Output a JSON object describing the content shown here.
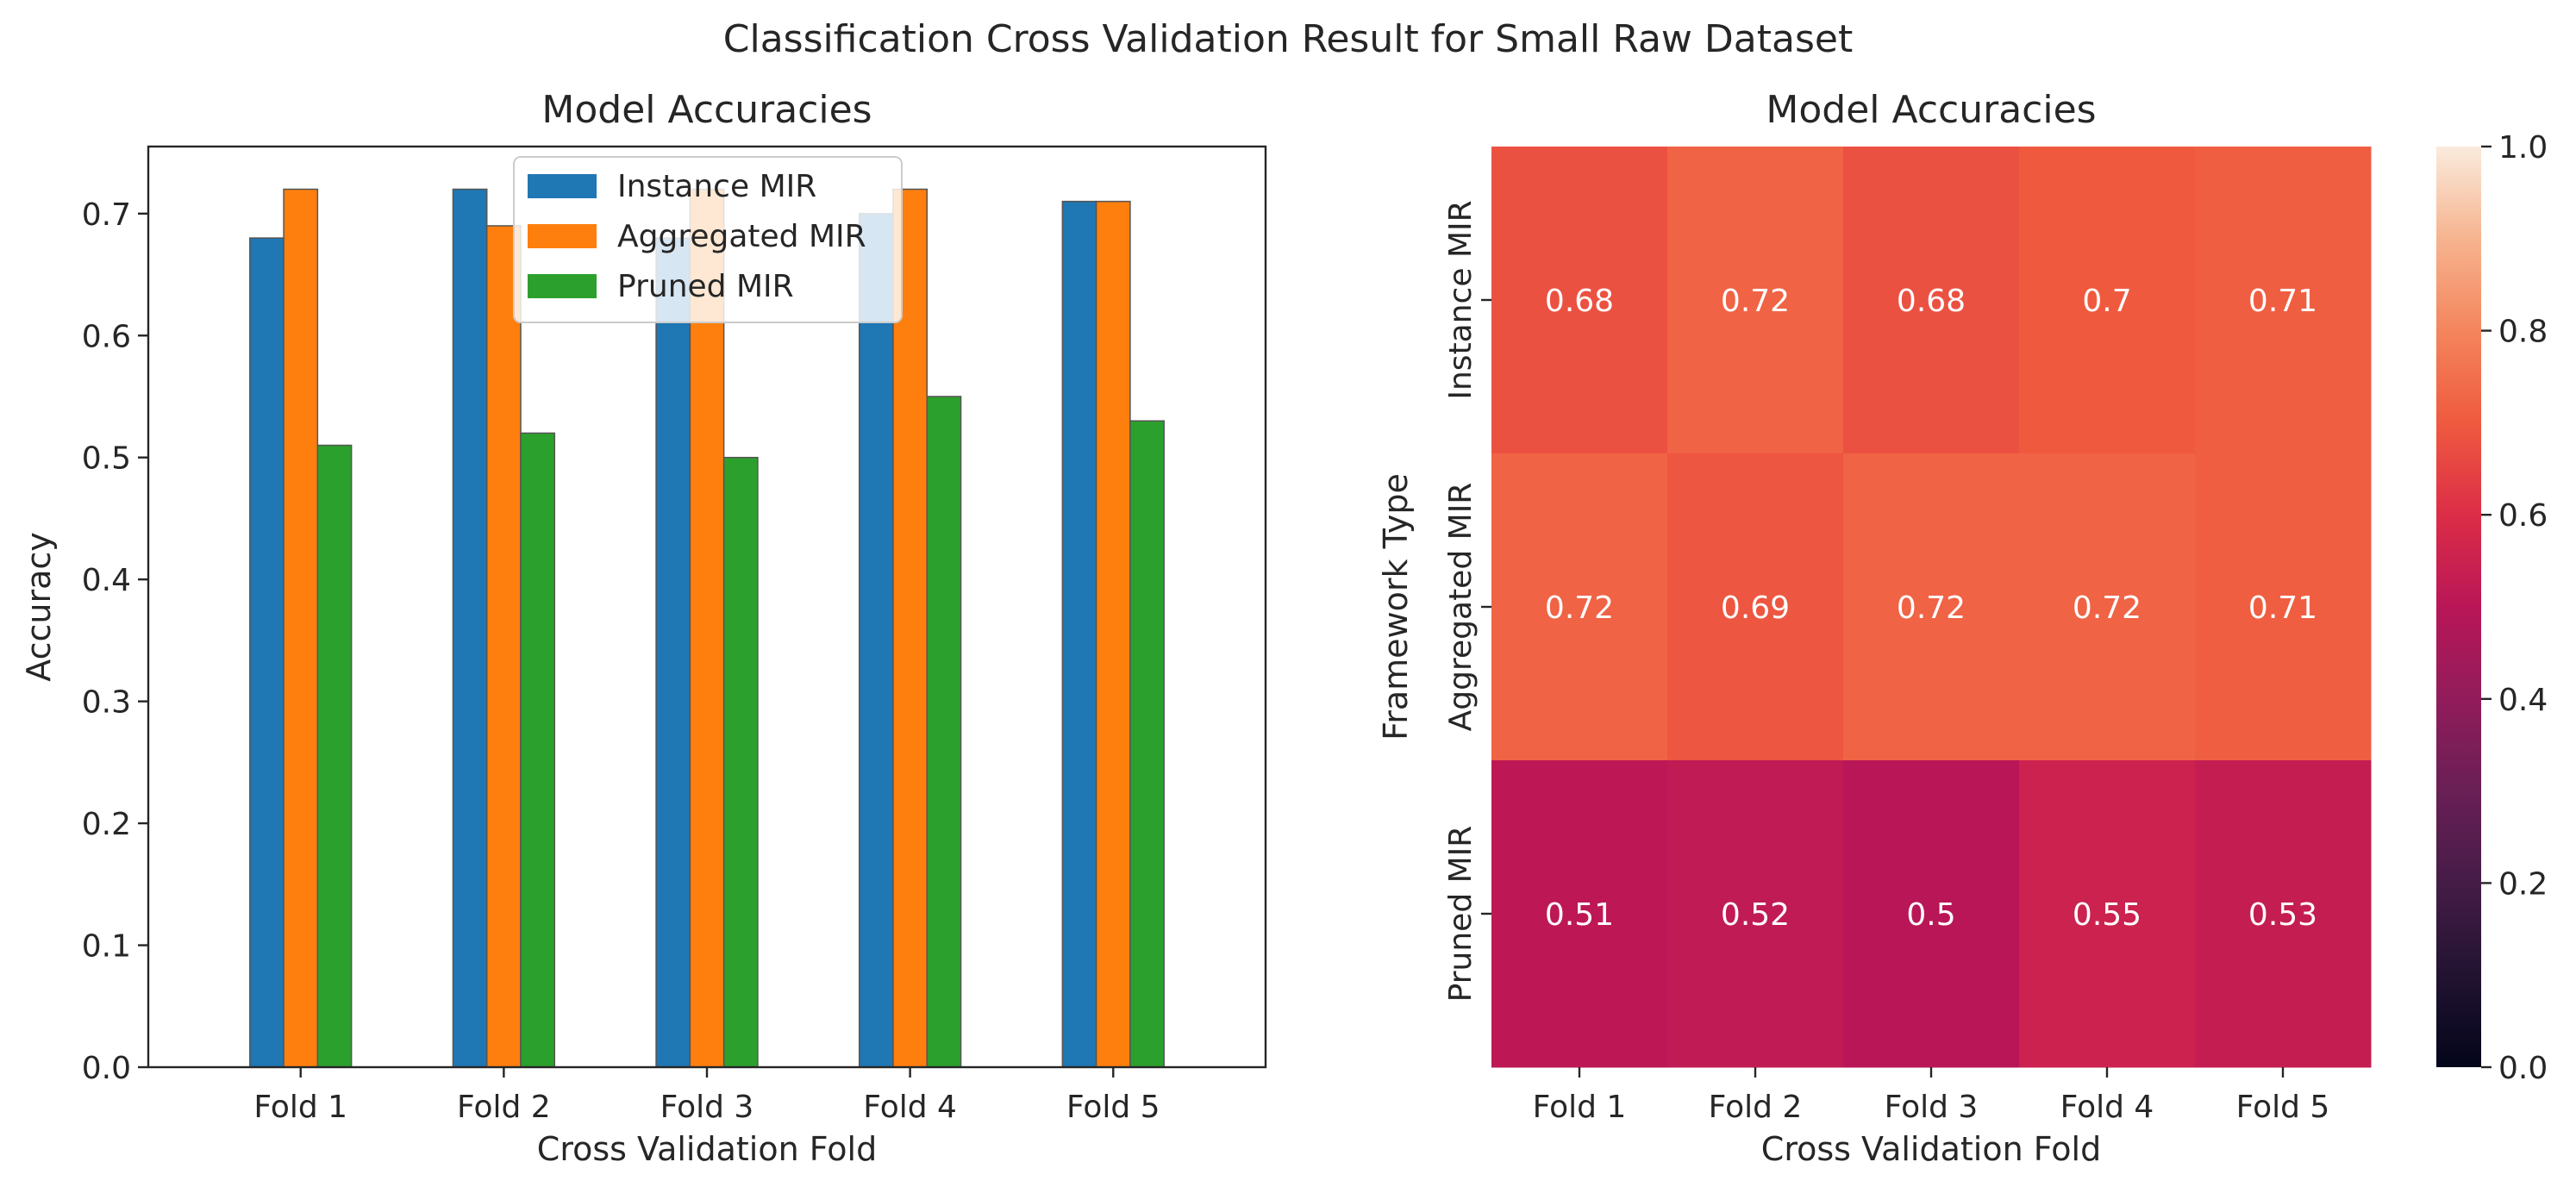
{
  "suptitle": "Classification Cross Validation Result for Small Raw Dataset",
  "colors": {
    "instance": "#1f77b4",
    "aggregated": "#ff7f0e",
    "pruned": "#2ca02c"
  },
  "chart_data": [
    {
      "type": "bar",
      "title": "Model Accuracies",
      "xlabel": "Cross Validation Fold",
      "ylabel": "Accuracy",
      "categories": [
        "Fold 1",
        "Fold 2",
        "Fold 3",
        "Fold 4",
        "Fold 5"
      ],
      "series": [
        {
          "name": "Instance MIR",
          "values": [
            0.68,
            0.72,
            0.68,
            0.7,
            0.71
          ]
        },
        {
          "name": "Aggregated MIR",
          "values": [
            0.72,
            0.69,
            0.72,
            0.72,
            0.71
          ]
        },
        {
          "name": "Pruned MIR",
          "values": [
            0.51,
            0.52,
            0.5,
            0.55,
            0.53
          ]
        }
      ],
      "ylim": [
        0,
        0.755
      ],
      "yticks": [
        "0.0",
        "0.1",
        "0.2",
        "0.3",
        "0.4",
        "0.5",
        "0.6",
        "0.7"
      ],
      "legend": "top-center",
      "grid": false
    },
    {
      "type": "heatmap",
      "title": "Model Accuracies",
      "xlabel": "Cross Validation Fold",
      "ylabel": "Framework Type",
      "columns": [
        "Fold 1",
        "Fold 2",
        "Fold 3",
        "Fold 4",
        "Fold 5"
      ],
      "rows": [
        "Instance MIR",
        "Aggregated MIR",
        "Pruned MIR"
      ],
      "values": [
        [
          0.68,
          0.72,
          0.68,
          0.7,
          0.71
        ],
        [
          0.72,
          0.69,
          0.72,
          0.72,
          0.71
        ],
        [
          0.51,
          0.52,
          0.5,
          0.55,
          0.53
        ]
      ],
      "cell_labels": [
        [
          "0.68",
          "0.72",
          "0.68",
          "0.7",
          "0.71"
        ],
        [
          "0.72",
          "0.69",
          "0.72",
          "0.72",
          "0.71"
        ],
        [
          "0.51",
          "0.52",
          "0.5",
          "0.55",
          "0.53"
        ]
      ],
      "colorbar": {
        "range": [
          0,
          1
        ],
        "ticks": [
          "0.0",
          "0.2",
          "0.4",
          "0.6",
          "0.8",
          "1.0"
        ],
        "colormap": "rocket"
      }
    }
  ]
}
